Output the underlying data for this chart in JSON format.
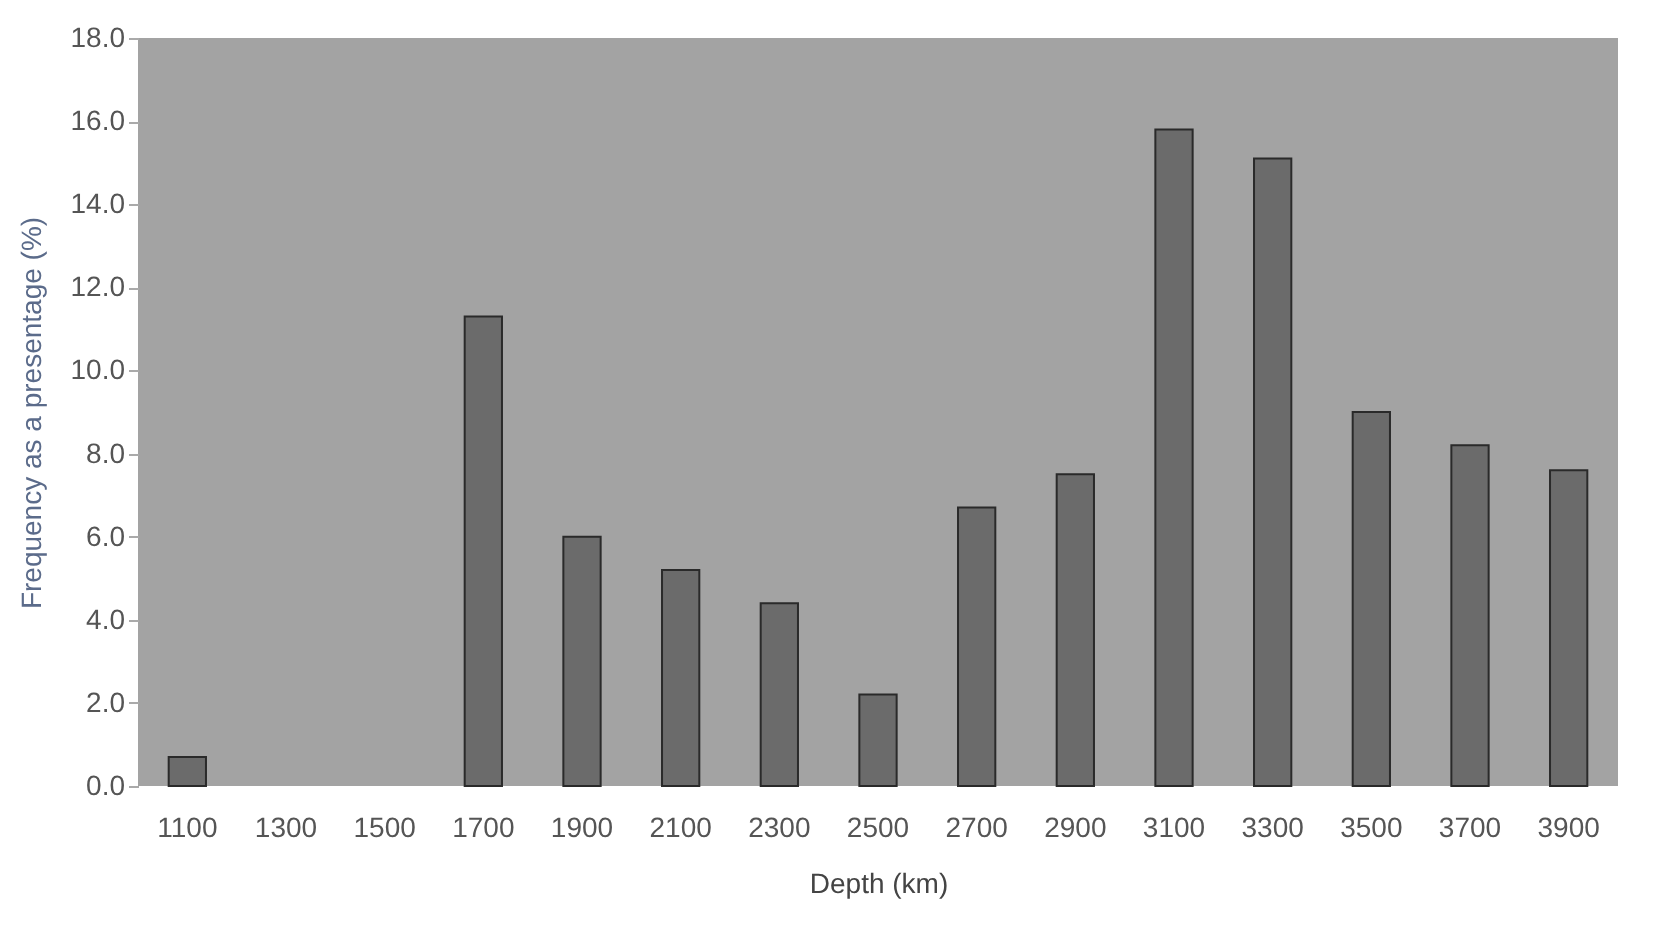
{
  "chart_data": {
    "type": "bar",
    "xlabel": "Depth (km)",
    "ylabel": "Frequency as a presentage (%)",
    "categories": [
      "1100",
      "1300",
      "1500",
      "1700",
      "1900",
      "2100",
      "2300",
      "2500",
      "2700",
      "2900",
      "3100",
      "3300",
      "3500",
      "3700",
      "3900"
    ],
    "values": [
      0.7,
      0,
      0,
      11.3,
      6.0,
      5.2,
      4.4,
      2.2,
      6.7,
      7.5,
      15.8,
      15.1,
      9.0,
      8.2,
      7.6
    ],
    "color": "#6b6b6b",
    "ylim": [
      0,
      18
    ],
    "yticks": [
      {
        "value": 0,
        "label": "0.0"
      },
      {
        "value": 2,
        "label": "2.0"
      },
      {
        "value": 4,
        "label": "4.0"
      },
      {
        "value": 6,
        "label": "6.0"
      },
      {
        "value": 8,
        "label": "8.0"
      },
      {
        "value": 10,
        "label": "10.0"
      },
      {
        "value": 12,
        "label": "12.0"
      },
      {
        "value": 14,
        "label": "14.0"
      },
      {
        "value": 16,
        "label": "16.0"
      },
      {
        "value": 18,
        "label": "18.0"
      }
    ],
    "grid": false
  }
}
